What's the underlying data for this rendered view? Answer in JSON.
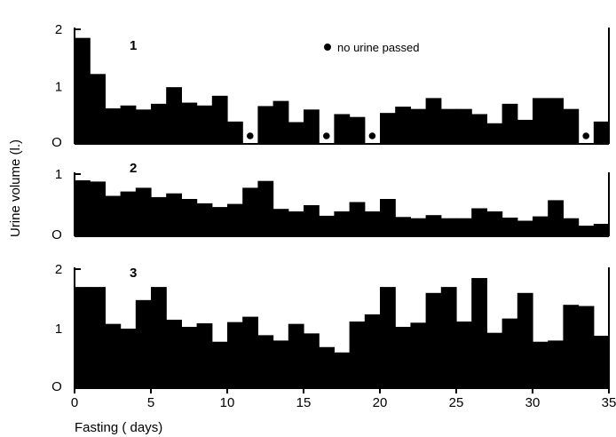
{
  "chart_data": {
    "type": "bar",
    "xlabel": "Fasting ( days)",
    "ylabel": "Urine volume (l.)",
    "xlim": [
      0,
      35
    ],
    "x_ticks": [
      "0",
      "5",
      "10",
      "15",
      "20",
      "25",
      "30",
      "35"
    ],
    "legend": {
      "symbol": "filled-circle",
      "label": "no urine passed",
      "placement": "top-center"
    },
    "colors": {
      "bars": "#000000",
      "background": "#ffffff"
    },
    "panels": [
      {
        "label": "1",
        "ylim": [
          0,
          2
        ],
        "y_ticks": [
          "O",
          "1",
          "2"
        ],
        "days": [
          0,
          1,
          2,
          3,
          4,
          5,
          6,
          7,
          8,
          9,
          10,
          11,
          12,
          13,
          14,
          15,
          16,
          17,
          18,
          19,
          20,
          21,
          22,
          23,
          24,
          25,
          26,
          27,
          28,
          29,
          30,
          31,
          32,
          33,
          34
        ],
        "values": [
          1.85,
          1.22,
          0.62,
          0.67,
          0.6,
          0.7,
          0.99,
          0.72,
          0.67,
          0.84,
          0.39,
          0,
          0.66,
          0.75,
          0.38,
          0.6,
          0,
          0.52,
          0.47,
          0,
          0.54,
          0.65,
          0.61,
          0.8,
          0.61,
          0.61,
          0.52,
          0.36,
          0.7,
          0.42,
          0.8,
          0.8,
          0.61,
          0,
          0.39
        ],
        "no_urine_days": [
          11,
          16,
          19,
          33
        ]
      },
      {
        "label": "2",
        "ylim": [
          0,
          1
        ],
        "y_ticks": [
          "O",
          "1"
        ],
        "days": [
          0,
          1,
          2,
          3,
          4,
          5,
          6,
          7,
          8,
          9,
          10,
          11,
          12,
          13,
          14,
          15,
          16,
          17,
          18,
          19,
          20,
          21,
          22,
          23,
          24,
          25,
          26,
          27,
          28,
          29,
          30,
          31,
          32,
          33,
          34
        ],
        "values": [
          0.9,
          0.88,
          0.65,
          0.72,
          0.78,
          0.63,
          0.69,
          0.6,
          0.53,
          0.47,
          0.52,
          0.78,
          0.89,
          0.44,
          0.4,
          0.5,
          0.33,
          0.4,
          0.55,
          0.4,
          0.6,
          0.31,
          0.29,
          0.34,
          0.29,
          0.29,
          0.45,
          0.4,
          0.3,
          0.25,
          0.32,
          0.58,
          0.29,
          0.17,
          0.2
        ],
        "no_urine_days": []
      },
      {
        "label": "3",
        "ylim": [
          0,
          2
        ],
        "y_ticks": [
          "O",
          "1",
          "2"
        ],
        "days": [
          0,
          1,
          2,
          3,
          4,
          5,
          6,
          7,
          8,
          9,
          10,
          11,
          12,
          13,
          14,
          15,
          16,
          17,
          18,
          19,
          20,
          21,
          22,
          23,
          24,
          25,
          26,
          27,
          28,
          29,
          30,
          31,
          32,
          33,
          34
        ],
        "values": [
          1.7,
          1.7,
          1.08,
          1.0,
          1.48,
          1.7,
          1.15,
          1.03,
          1.09,
          0.78,
          1.11,
          1.2,
          0.89,
          0.8,
          1.08,
          0.92,
          0.69,
          0.6,
          1.12,
          1.24,
          1.7,
          1.03,
          1.1,
          1.6,
          1.7,
          1.12,
          1.85,
          0.93,
          1.17,
          1.6,
          0.78,
          0.8,
          1.4,
          1.38,
          0.88
        ]
      }
    ]
  }
}
